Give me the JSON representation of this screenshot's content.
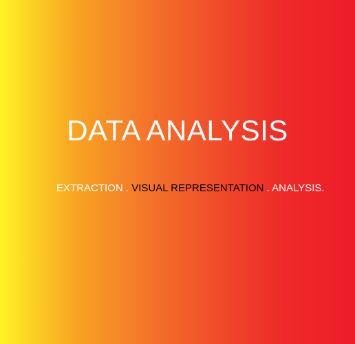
{
  "banner": {
    "title": "DATA ANALYSIS",
    "tagline": {
      "part1": "EXTRACTION",
      "sep1": " . ",
      "part2": "VISUAL REPRESENTATION",
      "sep2": " . ",
      "part3": "ANALYSIS."
    },
    "colors": {
      "gradient_start": "#fff325",
      "gradient_mid": "#f4782a",
      "gradient_end": "#ed1c29",
      "title_text": "#ffffff",
      "highlight_text": "#000000"
    }
  }
}
